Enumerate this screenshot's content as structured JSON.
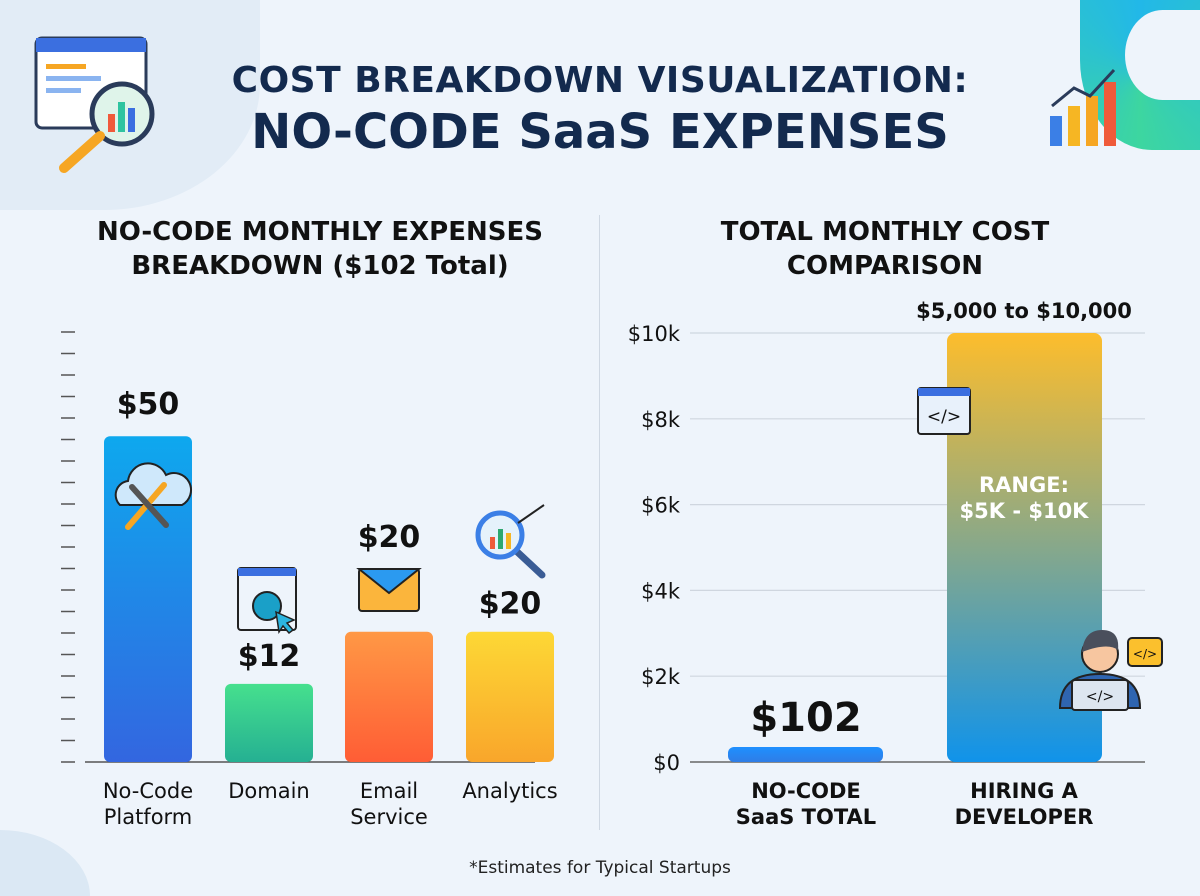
{
  "title": {
    "line1": "COST BREAKDOWN VISUALIZATION:",
    "line2": "NO-CODE SaaS EXPENSES"
  },
  "footnote": "*Estimates for Typical Startups",
  "chart_data": [
    {
      "type": "bar",
      "title": "NO-CODE MONTHLY EXPENSES BREAKDOWN ($102 Total)",
      "title_lines": [
        "NO-CODE MONTHLY EXPENSES",
        "BREAKDOWN ($102 Total)"
      ],
      "categories": [
        [
          "No-Code",
          "Platform"
        ],
        [
          "Domain"
        ],
        [
          "Email",
          "Service"
        ],
        [
          "Analytics"
        ]
      ],
      "values": [
        50,
        12,
        20,
        20
      ],
      "data_labels": [
        "$50",
        "$12",
        "$20",
        "$20"
      ],
      "icons": [
        "cloud-tools-icon",
        "web-globe-icon",
        "envelope-icon",
        "analytics-magnifier-icon"
      ],
      "colors": [
        [
          "#0ea8ee",
          "#3366e0"
        ],
        [
          "#46e08e",
          "#25b092"
        ],
        [
          "#ff9845",
          "#ff5d35"
        ],
        [
          "#fdd835",
          "#f9a62b"
        ]
      ],
      "ylim": [
        0,
        66
      ],
      "y_tick_labels": "none",
      "grid": false
    },
    {
      "type": "bar",
      "title": "TOTAL MONTHLY COST COMPARISON",
      "title_lines": [
        "TOTAL MONTHLY COST",
        "COMPARISON"
      ],
      "categories": [
        [
          "NO-CODE",
          "SaaS TOTAL"
        ],
        [
          "HIRING A",
          "DEVELOPER"
        ]
      ],
      "values": [
        102,
        [
          5000,
          10000
        ]
      ],
      "data_labels": [
        "$102",
        "$5,000 to $10,000"
      ],
      "inner_label": [
        "RANGE:",
        "$5K - $10K"
      ],
      "y_ticks": [
        0,
        2000,
        4000,
        6000,
        8000,
        10000
      ],
      "y_tick_labels": [
        "$0",
        "$2k",
        "$4k",
        "$6k",
        "$8k",
        "$10k"
      ],
      "ylim": [
        0,
        10000
      ],
      "grid": true,
      "colors": [
        [
          "#1e90ff",
          "#2f7de6"
        ],
        [
          "#fdbd2c",
          "#1093ea"
        ]
      ]
    }
  ]
}
